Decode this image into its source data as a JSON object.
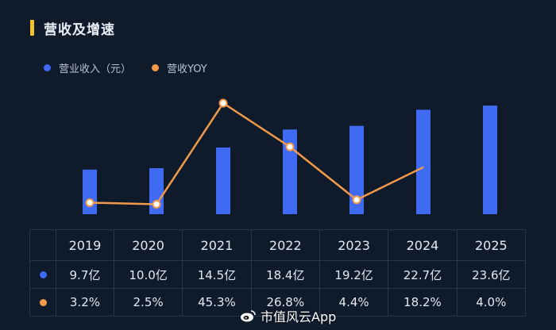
{
  "header": {
    "title": "营收及增速"
  },
  "colors": {
    "bar": "#3f6bf2",
    "line": "#f29a4a",
    "accent": "#f2c12e",
    "background": "#0f1a2b"
  },
  "chart_data": {
    "type": "bar",
    "title": "营收及增速",
    "categories": [
      "2019",
      "2020",
      "2021",
      "2022",
      "2023",
      "2024",
      "2025"
    ],
    "legend_position": "top-left",
    "series": [
      {
        "name": "营业收入（元）",
        "type": "bar",
        "values": [
          9.7,
          10.0,
          14.5,
          18.4,
          19.2,
          22.7,
          23.6
        ],
        "labels": [
          "9.7亿",
          "10.0亿",
          "14.5亿",
          "18.4亿",
          "19.2亿",
          "22.7亿",
          "23.6亿"
        ]
      },
      {
        "name": "营收YOY",
        "type": "line",
        "values": [
          3.2,
          2.5,
          45.3,
          26.8,
          4.4,
          18.2,
          4.0
        ],
        "labels": [
          "3.2%",
          "2.5%",
          "45.3%",
          "26.8%",
          "4.4%",
          "18.2%",
          "4.0%"
        ]
      }
    ]
  },
  "watermark": {
    "text": "市值风云App",
    "icon": "weibo-icon"
  }
}
